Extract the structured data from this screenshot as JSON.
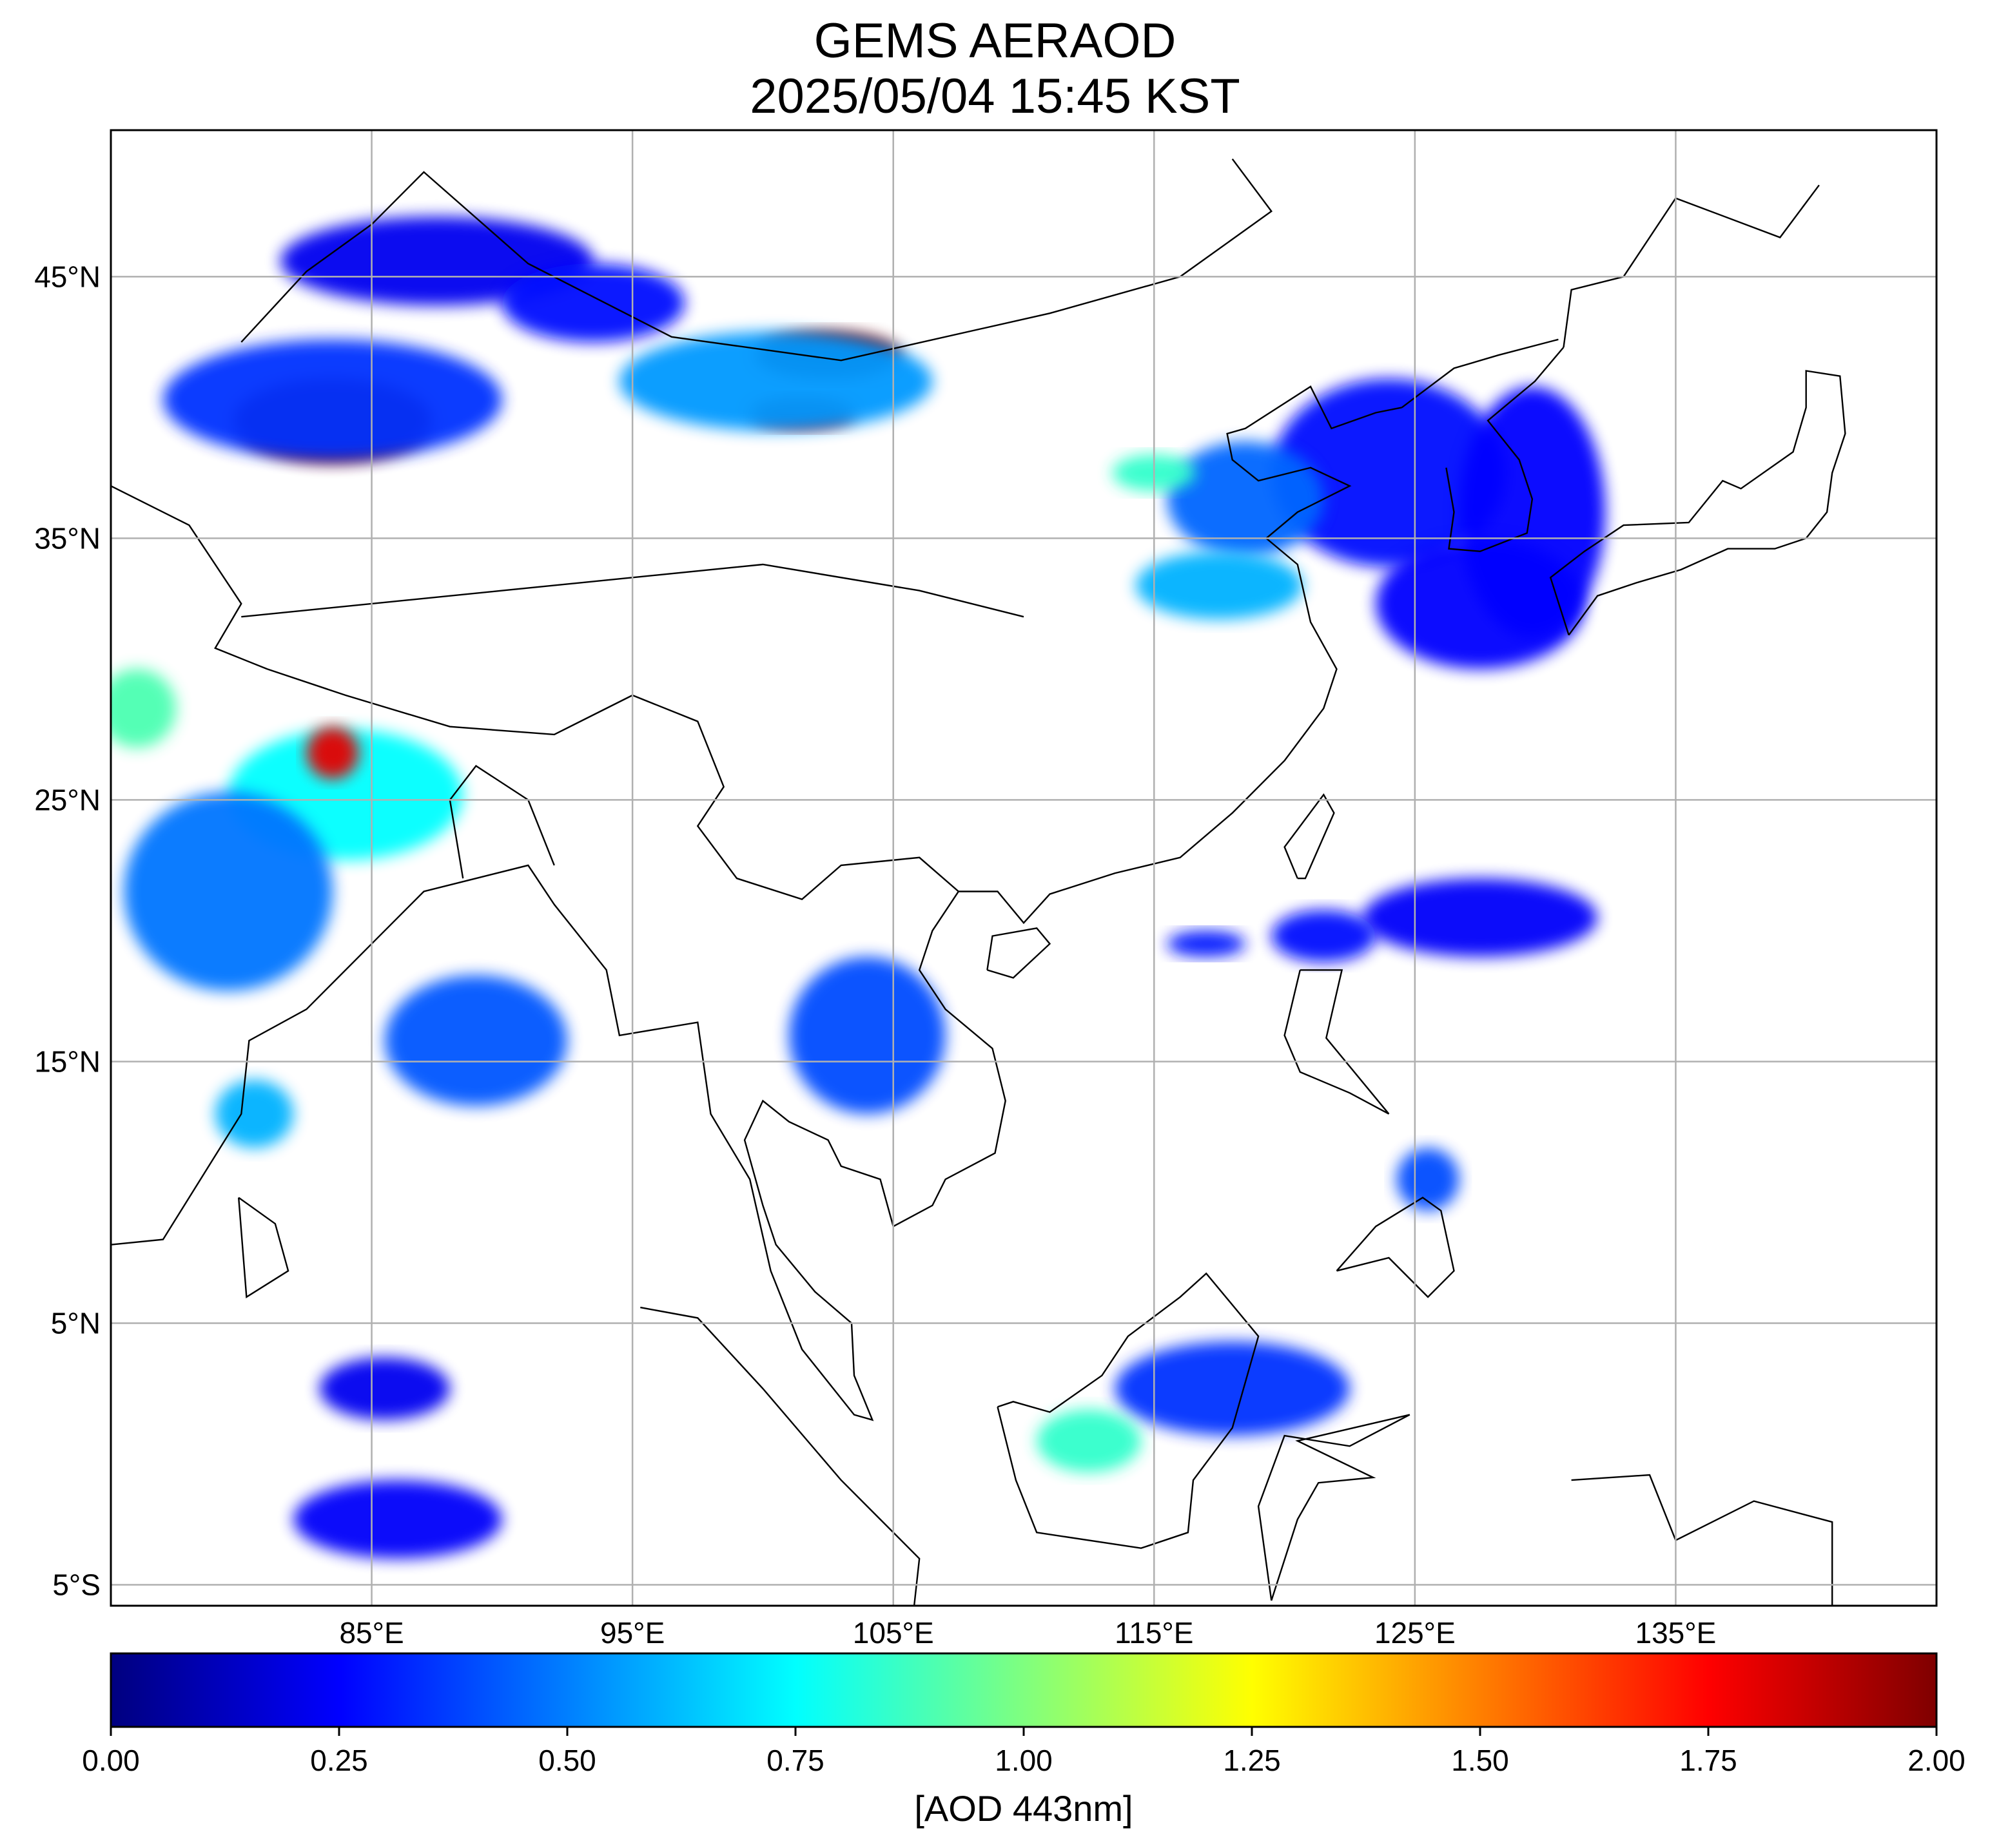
{
  "title": "GEMS AERAOD",
  "subtitle": "2025/05/04 15:45 KST",
  "colorbar": {
    "label": "[AOD 443nm]",
    "min": 0.0,
    "max": 2.0,
    "ticks": [
      "0.00",
      "0.25",
      "0.50",
      "0.75",
      "1.00",
      "1.25",
      "1.50",
      "1.75",
      "2.00"
    ],
    "colormap": "jet",
    "colors": [
      "#00007f",
      "#0000ff",
      "#007fff",
      "#00ffff",
      "#7fff7f",
      "#ffff00",
      "#ff7f00",
      "#ff0000",
      "#7f0000"
    ]
  },
  "map": {
    "lon_range": [
      75,
      145
    ],
    "lat_range": [
      -5.8,
      50.6
    ],
    "lat_ticks": [
      {
        "value": 45,
        "label": "45°N"
      },
      {
        "value": 35,
        "label": "35°N"
      },
      {
        "value": 25,
        "label": "25°N"
      },
      {
        "value": 15,
        "label": "15°N"
      },
      {
        "value": 5,
        "label": "5°N"
      },
      {
        "value": -5,
        "label": "5°S"
      }
    ],
    "lon_ticks": [
      {
        "value": 85,
        "label": "85°E"
      },
      {
        "value": 95,
        "label": "95°E"
      },
      {
        "value": 105,
        "label": "105°E"
      },
      {
        "value": 115,
        "label": "115°E"
      },
      {
        "value": 125,
        "label": "125°E"
      },
      {
        "value": 135,
        "label": "135°E"
      }
    ],
    "grid": true,
    "grid_color": "#b0b0b0",
    "aod_regions": [
      {
        "name": "taklimakan-dust",
        "lon": 83.5,
        "lat": 39.5,
        "rlon": 3.8,
        "rlat": 1.6,
        "aod": 2.0
      },
      {
        "name": "taklimakan-dust-edge",
        "lon": 83.5,
        "lat": 40.3,
        "rlon": 6.5,
        "rlat": 2.3,
        "aod": 0.35
      },
      {
        "name": "gobi-dust",
        "lon": 102.5,
        "lat": 42.0,
        "rlon": 2.8,
        "rlat": 0.9,
        "aod": 2.0
      },
      {
        "name": "gobi-dust-south",
        "lon": 101.5,
        "lat": 39.8,
        "rlon": 2.0,
        "rlat": 0.6,
        "aod": 1.9
      },
      {
        "name": "gobi-dust-edge",
        "lon": 100.5,
        "lat": 41.0,
        "rlon": 6.0,
        "rlat": 1.9,
        "aod": 0.55
      },
      {
        "name": "dzungaria-west",
        "lon": 87.5,
        "lat": 45.6,
        "rlon": 6.0,
        "rlat": 1.7,
        "aod": 0.22
      },
      {
        "name": "dzungaria-east",
        "lon": 93.5,
        "lat": 44.0,
        "rlon": 3.5,
        "rlat": 1.5,
        "aod": 0.28
      },
      {
        "name": "korea-yellow-sea",
        "lon": 124.0,
        "lat": 37.5,
        "rlon": 4.5,
        "rlat": 3.6,
        "aod": 0.28
      },
      {
        "name": "sea-of-japan",
        "lon": 129.5,
        "lat": 36.0,
        "rlon": 2.8,
        "rlat": 4.8,
        "aod": 0.25
      },
      {
        "name": "east-china-sea",
        "lon": 127.5,
        "lat": 32.5,
        "rlon": 4.0,
        "rlat": 2.5,
        "aod": 0.26
      },
      {
        "name": "north-china-plain",
        "lon": 118.5,
        "lat": 36.5,
        "rlon": 3.0,
        "rlat": 2.2,
        "aod": 0.45
      },
      {
        "name": "yangtze-delta",
        "lon": 117.5,
        "lat": 33.2,
        "rlon": 3.2,
        "rlat": 1.3,
        "aod": 0.6
      },
      {
        "name": "hebei-green",
        "lon": 115.0,
        "lat": 37.5,
        "rlon": 1.6,
        "rlat": 0.7,
        "aod": 0.85
      },
      {
        "name": "indo-gangetic",
        "lon": 84.0,
        "lat": 25.2,
        "rlon": 4.5,
        "rlat": 2.5,
        "aod": 0.75
      },
      {
        "name": "nepal-dust",
        "lon": 83.5,
        "lat": 26.8,
        "rlon": 1.0,
        "rlat": 1.0,
        "aod": 1.8
      },
      {
        "name": "north-india-west",
        "lon": 76.0,
        "lat": 28.5,
        "rlon": 1.5,
        "rlat": 1.5,
        "aod": 0.9
      },
      {
        "name": "central-india",
        "lon": 79.5,
        "lat": 21.5,
        "rlon": 4.0,
        "rlat": 3.8,
        "aod": 0.48
      },
      {
        "name": "bay-of-bengal",
        "lon": 89.0,
        "lat": 15.8,
        "rlon": 3.5,
        "rlat": 2.5,
        "aod": 0.42
      },
      {
        "name": "south-india",
        "lon": 80.5,
        "lat": 13.0,
        "rlon": 1.5,
        "rlat": 1.3,
        "aod": 0.6
      },
      {
        "name": "philippine-sea",
        "lon": 127.5,
        "lat": 20.5,
        "rlon": 4.5,
        "rlat": 1.5,
        "aod": 0.24
      },
      {
        "name": "luzon-strait",
        "lon": 121.5,
        "lat": 19.8,
        "rlon": 2.0,
        "rlat": 1.0,
        "aod": 0.28
      },
      {
        "name": "south-china-sea-w",
        "lon": 117.0,
        "lat": 19.5,
        "rlon": 1.5,
        "rlat": 0.5,
        "aod": 0.3
      },
      {
        "name": "indochina",
        "lon": 104.0,
        "lat": 16.0,
        "rlon": 3.0,
        "rlat": 3.0,
        "aod": 0.4
      },
      {
        "name": "borneo-sulawesi",
        "lon": 118.0,
        "lat": 2.5,
        "rlon": 4.5,
        "rlat": 1.8,
        "aod": 0.35
      },
      {
        "name": "borneo-green",
        "lon": 112.5,
        "lat": 0.5,
        "rlon": 2.0,
        "rlat": 1.2,
        "aod": 0.85
      },
      {
        "name": "mindanao",
        "lon": 125.5,
        "lat": 10.5,
        "rlon": 1.2,
        "rlat": 1.2,
        "aod": 0.4
      },
      {
        "name": "indian-ocean-s",
        "lon": 86.0,
        "lat": -2.5,
        "rlon": 4.0,
        "rlat": 1.5,
        "aod": 0.24
      },
      {
        "name": "indian-ocean-n",
        "lon": 85.5,
        "lat": 2.5,
        "rlon": 2.5,
        "rlat": 1.2,
        "aod": 0.22
      }
    ]
  }
}
